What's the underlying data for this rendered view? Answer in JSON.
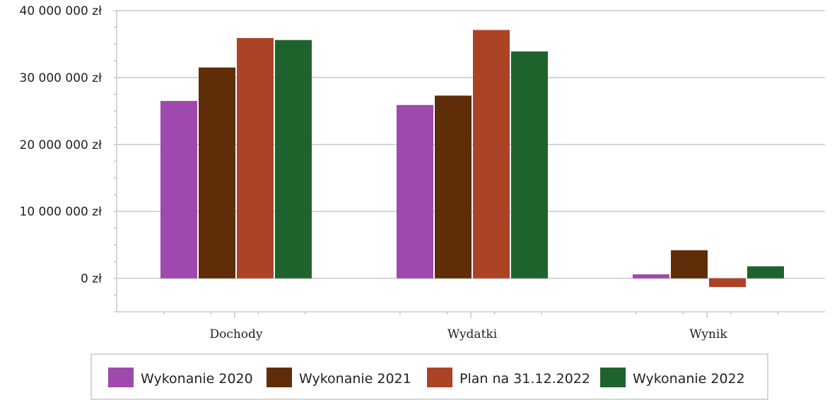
{
  "chart_data": {
    "type": "bar",
    "categories": [
      "Dochody",
      "Wydatki",
      "Wynik"
    ],
    "series": [
      {
        "name": "Wykonanie 2020",
        "color": "#9f48ad",
        "values": [
          26500000,
          25900000,
          600000
        ]
      },
      {
        "name": "Wykonanie 2021",
        "color": "#5f2d07",
        "values": [
          31500000,
          27300000,
          4200000
        ]
      },
      {
        "name": "Plan na 31.12.2022",
        "color": "#ac4226",
        "values": [
          35900000,
          37100000,
          -1300000
        ]
      },
      {
        "name": "Wykonanie 2022",
        "color": "#1e632b",
        "values": [
          35600000,
          33900000,
          1800000
        ]
      }
    ],
    "ylim": [
      -5000000,
      40000000
    ],
    "yticks": [
      0,
      10000000,
      20000000,
      30000000,
      40000000
    ],
    "ytick_labels": [
      "0 zł",
      "10 000 000 zł",
      "20 000 000 zł",
      "30 000 000 zł",
      "40 000 000 zł"
    ],
    "grid": true,
    "legend": "bottom"
  }
}
